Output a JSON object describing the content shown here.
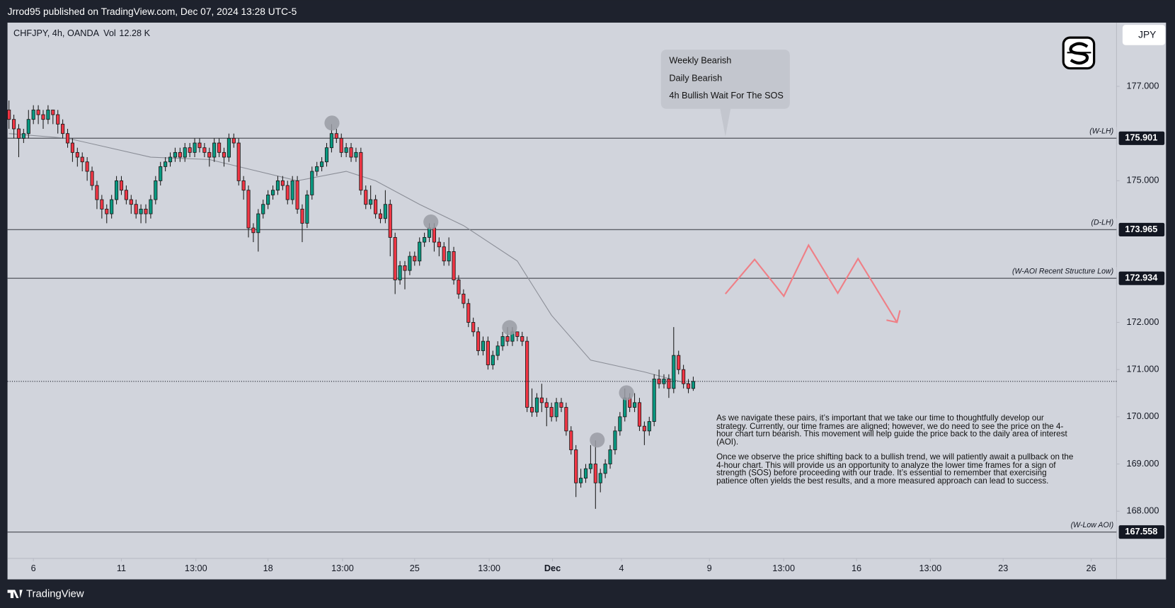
{
  "header": "Jrrod95 published on TradingView.com, Dec 07, 2024 13:28 UTC-5",
  "footer": "TradingView",
  "currency": "JPY",
  "chart_data": {
    "type": "candlestick",
    "title": "CHFJPY, 4h, OANDA",
    "volume_label": "Vol",
    "volume": "12.28 K",
    "up_color": "#089981",
    "down_color": "#f23645",
    "ylim": [
      167.0,
      178.35
    ],
    "yticks": [
      {
        "value": 177,
        "label": "177.000"
      },
      {
        "value": 175,
        "label": "175.000"
      },
      {
        "value": 172,
        "label": "172.000"
      },
      {
        "value": 171,
        "label": "171.000"
      },
      {
        "value": 170,
        "label": "170.000"
      },
      {
        "value": 169,
        "label": "169.000"
      },
      {
        "value": 168,
        "label": "168.000"
      }
    ],
    "xlim": [
      -0.3,
      226.6
    ],
    "xticks": [
      {
        "value": 5,
        "label": "6"
      },
      {
        "value": 23,
        "label": "11"
      },
      {
        "value": 38.25,
        "label": "13:00"
      },
      {
        "value": 53,
        "label": "18"
      },
      {
        "value": 68.25,
        "label": "13:00"
      },
      {
        "value": 83,
        "label": "25"
      },
      {
        "value": 98.25,
        "label": "13:00"
      },
      {
        "value": 111.2,
        "label": "Dec"
      },
      {
        "value": 125.3,
        "label": "4"
      },
      {
        "value": 143.3,
        "label": "9"
      },
      {
        "value": 158.5,
        "label": "13:00"
      },
      {
        "value": 173.4,
        "label": "16"
      },
      {
        "value": 188.5,
        "label": "13:00"
      },
      {
        "value": 203.4,
        "label": "23"
      },
      {
        "value": 221.4,
        "label": "26"
      }
    ],
    "candles": {
      "open": [
        176.5,
        176.3,
        176.1,
        175.9,
        176.0,
        176.3,
        176.5,
        176.4,
        176.3,
        176.5,
        176.4,
        176.2,
        176.0,
        175.8,
        175.6,
        175.5,
        175.4,
        175.2,
        174.9,
        174.6,
        174.4,
        174.3,
        174.6,
        175.0,
        174.8,
        174.6,
        174.5,
        174.3,
        174.4,
        174.3,
        174.6,
        175.0,
        175.3,
        175.4,
        175.5,
        175.6,
        175.5,
        175.7,
        175.6,
        175.8,
        175.7,
        175.6,
        175.5,
        175.8,
        175.6,
        175.5,
        175.9,
        175.8,
        175.0,
        174.8,
        174.0,
        173.9,
        174.3,
        174.5,
        174.7,
        174.8,
        175.0,
        174.9,
        174.6,
        175.0,
        174.4,
        174.1,
        174.7,
        175.2,
        175.3,
        175.4,
        175.7,
        176.0,
        175.9,
        175.6,
        175.7,
        175.5,
        175.6,
        174.8,
        174.5,
        174.6,
        174.3,
        174.2,
        174.5,
        173.8,
        172.9,
        173.2,
        173.1,
        173.4,
        173.3,
        173.7,
        173.8,
        174.0,
        173.7,
        173.6,
        173.3,
        173.5,
        172.9,
        172.6,
        172.4,
        172.0,
        171.8,
        171.4,
        171.6,
        171.1,
        171.3,
        171.5,
        171.7,
        171.6,
        171.8,
        171.7,
        171.6,
        170.2,
        170.1,
        170.4,
        170.3,
        170.2,
        170.0,
        170.3,
        170.2,
        169.7,
        169.3,
        168.6,
        168.7,
        168.9,
        169.0,
        168.6,
        168.8,
        169.0,
        169.3,
        169.7,
        170.0,
        170.4,
        170.2,
        170.3,
        169.8,
        169.7,
        169.9,
        170.8,
        170.7,
        170.8,
        170.6,
        171.3,
        171.0,
        170.7,
        170.6
      ],
      "high": [
        176.7,
        176.4,
        176.2,
        176.1,
        176.5,
        176.6,
        176.6,
        176.5,
        176.6,
        176.5,
        176.5,
        176.3,
        176.1,
        175.9,
        175.7,
        175.6,
        175.5,
        175.3,
        175.0,
        174.7,
        174.5,
        174.7,
        175.1,
        175.1,
        174.9,
        174.7,
        174.6,
        174.5,
        174.5,
        174.7,
        175.1,
        175.4,
        175.5,
        175.6,
        175.7,
        175.7,
        175.8,
        175.8,
        175.9,
        175.9,
        175.8,
        175.7,
        175.9,
        175.9,
        175.7,
        176.0,
        176.0,
        175.9,
        175.1,
        174.9,
        174.1,
        174.4,
        174.6,
        174.8,
        174.9,
        175.1,
        175.1,
        175.0,
        175.1,
        175.1,
        174.5,
        174.8,
        175.3,
        175.4,
        175.5,
        175.8,
        176.2,
        176.1,
        176.0,
        175.8,
        175.8,
        175.7,
        175.7,
        174.9,
        174.9,
        174.7,
        174.4,
        174.8,
        174.6,
        173.9,
        173.3,
        173.3,
        173.5,
        173.5,
        173.8,
        173.9,
        174.1,
        174.1,
        173.8,
        173.7,
        173.8,
        173.6,
        173.0,
        172.7,
        172.5,
        172.1,
        171.9,
        171.7,
        171.7,
        171.4,
        171.6,
        171.8,
        171.9,
        171.9,
        171.8,
        171.8,
        171.7,
        170.6,
        170.5,
        170.7,
        170.4,
        170.3,
        170.4,
        170.4,
        170.3,
        169.8,
        169.4,
        168.9,
        169.0,
        169.4,
        169.5,
        168.9,
        169.1,
        169.4,
        169.8,
        170.1,
        170.6,
        170.5,
        170.5,
        170.4,
        169.9,
        170.0,
        170.9,
        171.0,
        170.9,
        170.9,
        171.9,
        171.4,
        171.1,
        170.8,
        170.85
      ],
      "low": [
        176.1,
        175.9,
        175.5,
        175.8,
        175.9,
        176.2,
        176.2,
        176.1,
        176.2,
        176.2,
        176.0,
        175.9,
        175.7,
        175.4,
        175.3,
        175.2,
        175.0,
        174.8,
        174.4,
        174.2,
        174.1,
        174.2,
        174.5,
        174.7,
        174.5,
        174.3,
        174.2,
        174.1,
        174.1,
        174.2,
        174.5,
        174.9,
        175.2,
        175.3,
        175.4,
        175.4,
        175.4,
        175.5,
        175.5,
        175.6,
        175.5,
        175.3,
        175.4,
        175.5,
        175.3,
        175.4,
        175.7,
        174.9,
        174.6,
        173.8,
        173.7,
        173.5,
        174.2,
        174.4,
        174.6,
        174.7,
        174.8,
        174.5,
        174.5,
        174.3,
        173.7,
        174.0,
        174.6,
        175.1,
        175.2,
        175.3,
        175.6,
        175.8,
        175.5,
        175.5,
        175.4,
        175.4,
        174.7,
        174.4,
        174.4,
        174.2,
        174.1,
        174.1,
        173.4,
        172.6,
        172.8,
        172.7,
        173.0,
        173.2,
        173.2,
        173.6,
        173.7,
        173.5,
        173.4,
        173.2,
        173.2,
        172.8,
        172.5,
        172.3,
        171.9,
        171.7,
        171.3,
        171.3,
        171.0,
        171.0,
        171.2,
        171.4,
        171.5,
        171.5,
        171.6,
        171.5,
        170.1,
        170.0,
        170.0,
        170.1,
        169.8,
        169.9,
        169.9,
        170.1,
        169.6,
        169.2,
        168.3,
        168.5,
        168.6,
        168.8,
        168.05,
        168.4,
        168.7,
        168.9,
        169.2,
        169.6,
        169.9,
        170.1,
        170.1,
        169.7,
        169.4,
        169.6,
        169.8,
        170.6,
        170.6,
        170.4,
        170.5,
        170.9,
        170.6,
        170.5,
        170.55
      ],
      "close": [
        176.3,
        176.1,
        175.9,
        176.0,
        176.3,
        176.5,
        176.4,
        176.3,
        176.5,
        176.4,
        176.2,
        176.0,
        175.8,
        175.6,
        175.5,
        175.4,
        175.2,
        174.9,
        174.6,
        174.4,
        174.3,
        174.6,
        175.0,
        174.8,
        174.6,
        174.5,
        174.3,
        174.4,
        174.3,
        174.6,
        175.0,
        175.3,
        175.4,
        175.5,
        175.6,
        175.5,
        175.7,
        175.6,
        175.8,
        175.7,
        175.6,
        175.5,
        175.8,
        175.6,
        175.5,
        175.9,
        175.8,
        175.0,
        174.8,
        174.0,
        173.9,
        174.3,
        174.5,
        174.7,
        174.8,
        175.0,
        174.9,
        174.6,
        175.0,
        174.4,
        174.1,
        174.7,
        175.2,
        175.3,
        175.4,
        175.7,
        176.0,
        175.9,
        175.6,
        175.7,
        175.5,
        175.6,
        174.8,
        174.5,
        174.6,
        174.3,
        174.2,
        174.5,
        173.8,
        172.9,
        173.2,
        173.1,
        173.4,
        173.3,
        173.7,
        173.8,
        174.0,
        173.7,
        173.6,
        173.3,
        173.5,
        172.9,
        172.6,
        172.4,
        172.0,
        171.8,
        171.4,
        171.6,
        171.1,
        171.3,
        171.5,
        171.7,
        171.6,
        171.8,
        171.7,
        171.6,
        170.2,
        170.1,
        170.4,
        170.3,
        170.2,
        170.0,
        170.3,
        170.2,
        169.7,
        169.3,
        168.6,
        168.7,
        168.9,
        169.0,
        168.6,
        168.8,
        169.0,
        169.3,
        169.7,
        170.0,
        170.4,
        170.2,
        170.3,
        169.8,
        169.7,
        169.9,
        170.8,
        170.7,
        170.8,
        170.6,
        171.3,
        171.0,
        170.7,
        170.6,
        170.75
      ]
    },
    "moving_average": {
      "color": "#8a8d96",
      "x": [
        0,
        12,
        29,
        41,
        49,
        59,
        69,
        75,
        84,
        93,
        104,
        111,
        119,
        130,
        139
      ],
      "values": [
        176.0,
        175.9,
        175.5,
        175.45,
        175.25,
        175.0,
        175.2,
        175.0,
        174.5,
        174.05,
        173.3,
        172.15,
        171.2,
        170.95,
        170.7
      ]
    },
    "levels": [
      {
        "value": 175.901,
        "label": "(W-LH)"
      },
      {
        "value": 173.965,
        "label": "(D-LH)"
      },
      {
        "value": 172.934,
        "label": "(W-AOI Recent Structure Low)"
      },
      {
        "value": 167.558,
        "label": "(W-Low AOI)"
      }
    ],
    "bias_notes": [
      "Weekly Bearish",
      "Daily Bearish",
      "4h Bullish Wait For The SOS"
    ],
    "analysis": [
      "As we navigate these pairs, it’s important that we take our time to thoughtfully develop our strategy. Currently, our time frames are aligned; however, we do need to see the price on the 4-hour chart turn bearish. This movement will help guide the price back to the daily area of interest (AOI).",
      "Once we observe the price shifting back to a bullish trend, we will patiently await a pullback on the 4-hour chart. This will provide us an opportunity to analyze the lower time frames for a sign of strength (SOS) before proceeding with our trade. It’s essential to remember that exercising patience often yields the best results, and a more measured approach can lead to success."
    ]
  }
}
